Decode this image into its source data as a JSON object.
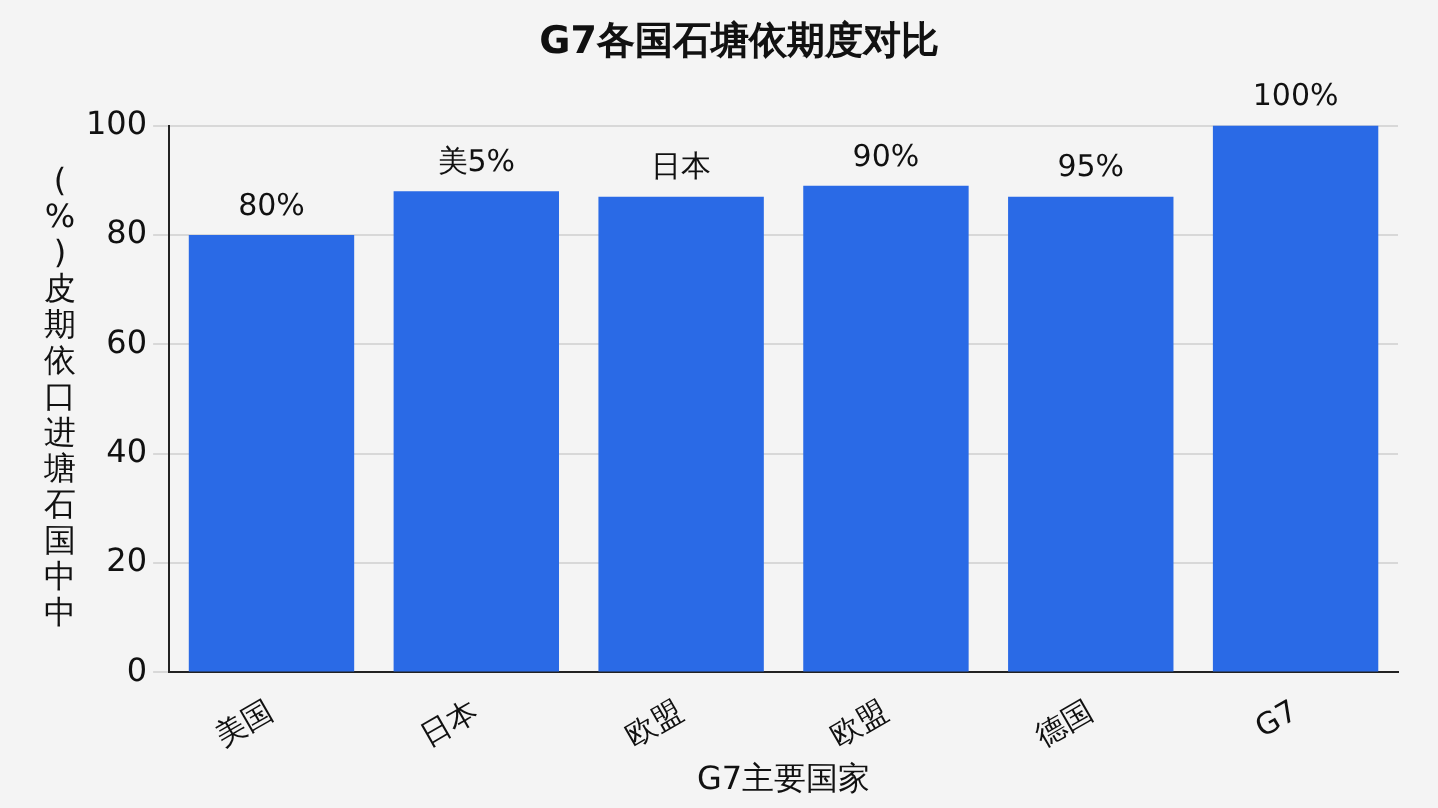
{
  "chart_data": {
    "type": "bar",
    "title": "G7各国石塘依期度对比",
    "xlabel": "G7主要国家",
    "ylabel": "(%)皮期依口进塘石国中中",
    "categories": [
      "美国",
      "日本",
      "欧盟",
      "欧盟",
      "德国",
      "G7"
    ],
    "values": [
      80,
      88,
      87,
      89,
      87,
      100
    ],
    "annotations": [
      "80%",
      "美5%",
      "日本",
      "90%",
      "95%",
      "100%"
    ],
    "color": "#2a6ae6",
    "ylim": [
      0,
      100
    ],
    "yticks": [
      0,
      20,
      40,
      60,
      80,
      100
    ],
    "grid": "y",
    "legend": false
  }
}
